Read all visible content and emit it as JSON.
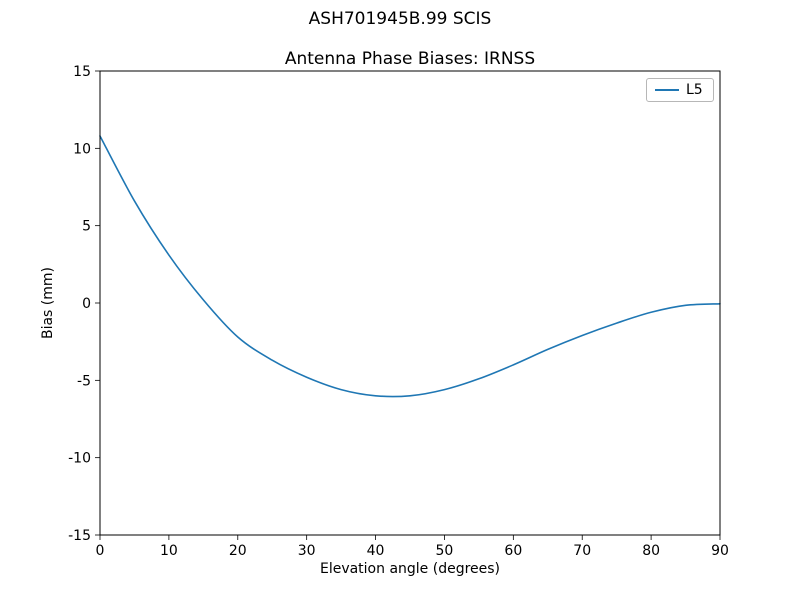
{
  "chart_data": {
    "type": "line",
    "suptitle": "ASH701945B.99   SCIS",
    "title": "Antenna Phase Biases: IRNSS",
    "xlabel": "Elevation angle (degrees)",
    "ylabel": "Bias (mm)",
    "xlim": [
      0,
      90
    ],
    "ylim": [
      -15,
      15
    ],
    "xticks": [
      0,
      10,
      20,
      30,
      40,
      50,
      60,
      70,
      80,
      90
    ],
    "yticks": [
      -15,
      -10,
      -5,
      0,
      5,
      10,
      15
    ],
    "grid": false,
    "legend_position": "upper right",
    "series": [
      {
        "name": "L5",
        "color": "#1f77b4",
        "x": [
          0,
          5,
          10,
          15,
          20,
          25,
          30,
          35,
          40,
          45,
          50,
          55,
          60,
          65,
          70,
          75,
          80,
          85,
          90
        ],
        "y": [
          10.8,
          6.6,
          3.1,
          0.2,
          -2.2,
          -3.7,
          -4.8,
          -5.6,
          -6.0,
          -6.0,
          -5.6,
          -4.9,
          -4.0,
          -3.0,
          -2.1,
          -1.3,
          -0.6,
          -0.15,
          -0.05
        ]
      }
    ]
  }
}
